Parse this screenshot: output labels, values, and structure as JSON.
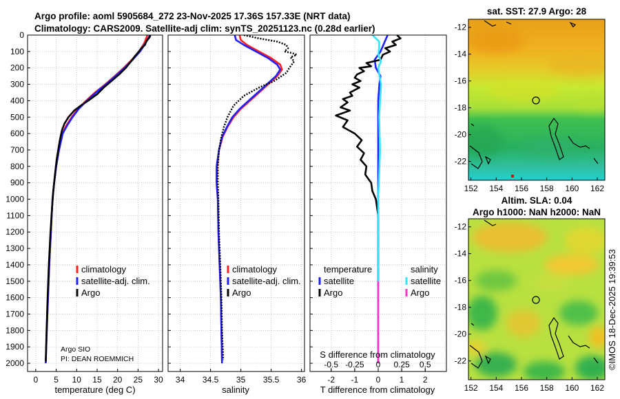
{
  "title": {
    "line1": "Argo profile: aoml 5905684_272 23-Nov-2025 17.36S 157.33E (NRT data)",
    "line2": "Climatology: CARS2009. Satellite-adj clim: synTS_20251123.nc (0.28d earlier)"
  },
  "credit": {
    "institution": "Argo SIO",
    "pi": "PI: DEAN ROEMMICH"
  },
  "watermark": "©IMOS 18-Dec-2025 19:39:53",
  "colors": {
    "climatology": "#ff2020",
    "satellite": "#2020ff",
    "argo": "#000000",
    "sat_salinity": "#33e6ff",
    "argo_salinity": "#ff33cc"
  },
  "depth_axis": {
    "min": 0,
    "max": 2050,
    "ticks": [
      "0",
      "100",
      "200",
      "300",
      "400",
      "500",
      "600",
      "700",
      "800",
      "900",
      "1000",
      "1100",
      "1200",
      "1300",
      "1400",
      "1500",
      "1600",
      "1700",
      "1800",
      "1900",
      "2000"
    ]
  },
  "chart_data": [
    {
      "type": "line",
      "name": "temperature",
      "xlabel": "temperature (deg C)",
      "xlim": [
        -2,
        31
      ],
      "xticks": [
        "0",
        "5",
        "10",
        "15",
        "20",
        "25",
        "30"
      ],
      "ylim": [
        0,
        2050
      ],
      "legend": [
        "climatology",
        "satellite-adj. clim.",
        "Argo"
      ],
      "series": [
        {
          "name": "climatology",
          "color": "#ff2020",
          "points": [
            [
              27.3,
              0
            ],
            [
              27.0,
              20
            ],
            [
              26.5,
              50
            ],
            [
              25.3,
              100
            ],
            [
              23.5,
              150
            ],
            [
              21.5,
              200
            ],
            [
              19.3,
              250
            ],
            [
              17.0,
              300
            ],
            [
              14.5,
              350
            ],
            [
              12.3,
              400
            ],
            [
              10.3,
              450
            ],
            [
              8.8,
              500
            ],
            [
              7.5,
              550
            ],
            [
              6.5,
              600
            ],
            [
              5.6,
              700
            ],
            [
              5.0,
              800
            ],
            [
              4.5,
              900
            ],
            [
              4.1,
              1000
            ],
            [
              3.7,
              1200
            ],
            [
              3.3,
              1400
            ],
            [
              3.0,
              1600
            ],
            [
              2.7,
              1800
            ],
            [
              2.45,
              2000
            ]
          ]
        },
        {
          "name": "satellite-adj. clim.",
          "color": "#2020ff",
          "points": [
            [
              27.9,
              0
            ],
            [
              27.5,
              20
            ],
            [
              26.8,
              50
            ],
            [
              25.5,
              100
            ],
            [
              23.7,
              150
            ],
            [
              21.7,
              200
            ],
            [
              19.5,
              250
            ],
            [
              17.2,
              300
            ],
            [
              14.7,
              350
            ],
            [
              12.5,
              400
            ],
            [
              10.5,
              450
            ],
            [
              9.0,
              500
            ],
            [
              7.7,
              550
            ],
            [
              6.6,
              600
            ],
            [
              5.7,
              700
            ],
            [
              5.0,
              800
            ],
            [
              4.5,
              900
            ],
            [
              4.1,
              1000
            ],
            [
              3.7,
              1200
            ],
            [
              3.3,
              1400
            ],
            [
              3.0,
              1600
            ],
            [
              2.7,
              1800
            ],
            [
              2.45,
              2000
            ]
          ]
        },
        {
          "name": "Argo",
          "color": "#000000",
          "points": [
            [
              28,
              0
            ],
            [
              27.9,
              10
            ],
            [
              27.6,
              20
            ],
            [
              27.0,
              40
            ],
            [
              26.7,
              60
            ],
            [
              25.8,
              80
            ],
            [
              25.2,
              100
            ],
            [
              24.2,
              130
            ],
            [
              23.3,
              160
            ],
            [
              22.0,
              200
            ],
            [
              20.4,
              240
            ],
            [
              18.5,
              280
            ],
            [
              16.6,
              320
            ],
            [
              15.0,
              360
            ],
            [
              12.8,
              400
            ],
            [
              11.0,
              430
            ],
            [
              9.4,
              460
            ],
            [
              8.0,
              500
            ],
            [
              7.0,
              540
            ],
            [
              6.4,
              580
            ],
            [
              5.9,
              640
            ],
            [
              5.5,
              700
            ],
            [
              5.1,
              760
            ],
            [
              4.7,
              850
            ],
            [
              4.3,
              950
            ],
            [
              4.0,
              1050
            ],
            [
              3.6,
              1200
            ],
            [
              3.2,
              1400
            ],
            [
              2.9,
              1600
            ],
            [
              2.65,
              1800
            ],
            [
              2.45,
              1990
            ]
          ]
        }
      ]
    },
    {
      "type": "line",
      "name": "salinity",
      "xlabel": "salinity",
      "xlim": [
        33.8,
        36.05
      ],
      "xticks": [
        "34",
        "34.5",
        "35",
        "35.5",
        "36"
      ],
      "ylim": [
        0,
        2050
      ],
      "legend": [
        "climatology",
        "satellite-adj. clim.",
        "Argo"
      ],
      "series": [
        {
          "name": "climatology",
          "color": "#ff2020",
          "points": [
            [
              34.98,
              0
            ],
            [
              35.0,
              30
            ],
            [
              35.1,
              60
            ],
            [
              35.3,
              100
            ],
            [
              35.5,
              140
            ],
            [
              35.65,
              180
            ],
            [
              35.68,
              210
            ],
            [
              35.6,
              250
            ],
            [
              35.45,
              300
            ],
            [
              35.3,
              350
            ],
            [
              35.15,
              400
            ],
            [
              35.0,
              450
            ],
            [
              34.88,
              500
            ],
            [
              34.78,
              560
            ],
            [
              34.7,
              620
            ],
            [
              34.64,
              700
            ],
            [
              34.61,
              800
            ],
            [
              34.6,
              900
            ],
            [
              34.62,
              1000
            ],
            [
              34.63,
              1200
            ],
            [
              34.65,
              1400
            ],
            [
              34.67,
              1600
            ],
            [
              34.68,
              1800
            ],
            [
              34.69,
              2000
            ]
          ]
        },
        {
          "name": "satellite-adj. clim.",
          "color": "#2020ff",
          "points": [
            [
              34.9,
              0
            ],
            [
              34.92,
              30
            ],
            [
              35.05,
              60
            ],
            [
              35.25,
              100
            ],
            [
              35.45,
              140
            ],
            [
              35.6,
              180
            ],
            [
              35.65,
              210
            ],
            [
              35.58,
              250
            ],
            [
              35.43,
              300
            ],
            [
              35.28,
              350
            ],
            [
              35.13,
              400
            ],
            [
              34.98,
              450
            ],
            [
              34.86,
              500
            ],
            [
              34.77,
              560
            ],
            [
              34.69,
              620
            ],
            [
              34.64,
              700
            ],
            [
              34.6,
              800
            ],
            [
              34.6,
              900
            ],
            [
              34.62,
              1000
            ],
            [
              34.63,
              1200
            ],
            [
              34.65,
              1400
            ],
            [
              34.67,
              1600
            ],
            [
              34.68,
              1800
            ],
            [
              34.69,
              2000
            ]
          ]
        },
        {
          "name": "Argo",
          "color": "#000000",
          "points": [
            [
              35.05,
              0
            ],
            [
              35.3,
              20
            ],
            [
              35.6,
              40
            ],
            [
              35.75,
              60
            ],
            [
              35.78,
              80
            ],
            [
              35.72,
              100
            ],
            [
              35.85,
              110
            ],
            [
              35.92,
              120
            ],
            [
              35.82,
              135
            ],
            [
              35.88,
              160
            ],
            [
              35.8,
              200
            ],
            [
              35.75,
              230
            ],
            [
              35.55,
              280
            ],
            [
              35.3,
              320
            ],
            [
              35.05,
              370
            ],
            [
              34.88,
              430
            ],
            [
              34.78,
              500
            ],
            [
              34.72,
              560
            ],
            [
              34.68,
              620
            ],
            [
              34.64,
              700
            ],
            [
              34.62,
              800
            ],
            [
              34.62,
              900
            ],
            [
              34.63,
              1000
            ],
            [
              34.64,
              1200
            ],
            [
              34.66,
              1400
            ],
            [
              34.68,
              1600
            ],
            [
              34.69,
              1800
            ],
            [
              34.71,
              1980
            ]
          ]
        }
      ]
    },
    {
      "type": "line",
      "name": "difference-from-climatology",
      "xlabel": "T difference from climatology",
      "xlabel_top": "S difference from climatology",
      "xlim": [
        -2.9,
        2.9
      ],
      "xticks": [
        "-2",
        "-1",
        "0",
        "1",
        "2"
      ],
      "s_ticks": [
        "-0.5",
        "-0.25",
        "0",
        "0.25",
        "0.5"
      ],
      "ylim": [
        0,
        2050
      ],
      "legend": {
        "temperature_title": "temperature",
        "salinity_title": "salinity",
        "entries": [
          "satellite",
          "Argo",
          "satellite",
          "Argo"
        ]
      },
      "series": [
        {
          "name": "temperature satellite",
          "color": "#2020ff",
          "points": [
            [
              0.4,
              0
            ],
            [
              0.25,
              50
            ],
            [
              0.1,
              100
            ],
            [
              -0.15,
              150
            ],
            [
              -0.1,
              200
            ],
            [
              0.1,
              250
            ],
            [
              0.05,
              300
            ],
            [
              0.0,
              400
            ],
            [
              0,
              600
            ],
            [
              0,
              2000
            ]
          ]
        },
        {
          "name": "temperature Argo",
          "color": "#000000",
          "points": [
            [
              0.8,
              0
            ],
            [
              0.95,
              20
            ],
            [
              0.6,
              40
            ],
            [
              0.75,
              60
            ],
            [
              0.3,
              80
            ],
            [
              0.5,
              100
            ],
            [
              0.2,
              120
            ],
            [
              0.1,
              150
            ],
            [
              -0.5,
              170
            ],
            [
              -0.3,
              190
            ],
            [
              -0.8,
              200
            ],
            [
              -0.6,
              220
            ],
            [
              -0.9,
              240
            ],
            [
              -1.0,
              260
            ],
            [
              -0.75,
              280
            ],
            [
              -1.1,
              300
            ],
            [
              -0.8,
              320
            ],
            [
              -1.2,
              350
            ],
            [
              -1.1,
              370
            ],
            [
              -1.5,
              390
            ],
            [
              -1.3,
              410
            ],
            [
              -1.6,
              440
            ],
            [
              -1.2,
              460
            ],
            [
              -1.8,
              490
            ],
            [
              -1.3,
              520
            ],
            [
              -1.5,
              560
            ],
            [
              -1.0,
              600
            ],
            [
              -0.7,
              640
            ],
            [
              -0.9,
              680
            ],
            [
              -0.6,
              720
            ],
            [
              -0.75,
              760
            ],
            [
              -0.5,
              800
            ],
            [
              -0.55,
              850
            ],
            [
              -0.3,
              900
            ],
            [
              -0.25,
              950
            ],
            [
              -0.1,
              1000
            ],
            [
              0.0,
              1100
            ],
            [
              0.0,
              1990
            ]
          ]
        },
        {
          "name": "salinity satellite",
          "color": "#33e6ff",
          "points": [
            [
              -0.06,
              0
            ],
            [
              0.01,
              40
            ],
            [
              0.01,
              80
            ],
            [
              0.0,
              120
            ],
            [
              0.03,
              160
            ],
            [
              0.0,
              200
            ],
            [
              0.03,
              300
            ],
            [
              0.01,
              500
            ],
            [
              0.02,
              700
            ],
            [
              0.0,
              1000
            ],
            [
              0.0,
              2000
            ]
          ]
        },
        {
          "name": "salinity Argo",
          "color": "#ff33cc",
          "points": [
            [
              0.0,
              1500
            ],
            [
              0.0,
              2000
            ]
          ]
        }
      ]
    },
    {
      "type": "heatmap",
      "name": "sst-map",
      "title": "sat. SST: 27.9 Argo: 28",
      "lon_range": [
        151.8,
        162.6
      ],
      "lat_range": [
        -23.4,
        -11.4
      ],
      "lon_ticks": [
        "152",
        "154",
        "156",
        "158",
        "160",
        "162"
      ],
      "lat_ticks": [
        "-12",
        "-14",
        "-16",
        "-18",
        "-20",
        "-22"
      ]
    },
    {
      "type": "heatmap",
      "name": "sla-map",
      "title_line1": "Altim. SLA: 0.04",
      "title_line2": "Argo h1000: NaN h2000: NaN",
      "lon_range": [
        151.8,
        162.6
      ],
      "lat_range": [
        -23.4,
        -11.4
      ],
      "lon_ticks": [
        "152",
        "154",
        "156",
        "158",
        "160",
        "162"
      ],
      "lat_ticks": [
        "-12",
        "-14",
        "-16",
        "-18",
        "-20",
        "-22"
      ]
    }
  ]
}
